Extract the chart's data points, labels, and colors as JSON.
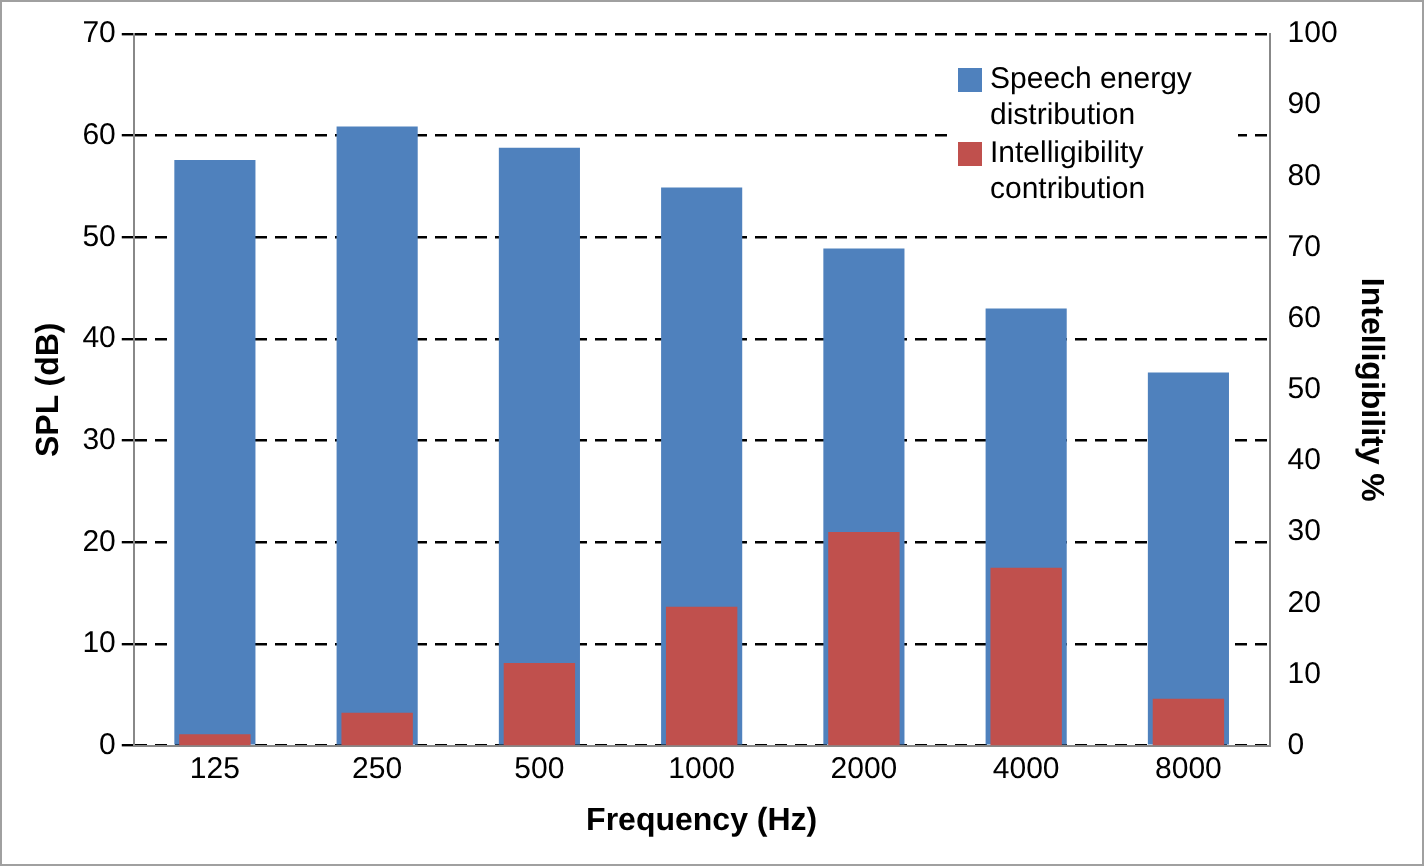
{
  "chart_data": {
    "type": "bar",
    "xlabel": "Frequency (Hz)",
    "ylabel": "SPL (dB)",
    "y2label": "Intelligibility %",
    "categories": [
      "125",
      "250",
      "500",
      "1000",
      "2000",
      "4000",
      "8000"
    ],
    "series": [
      {
        "name": "Speech energy distribution",
        "color": "#4f81bd",
        "values": [
          57.6,
          60.9,
          58.8,
          54.9,
          48.9,
          43,
          36.7
        ]
      },
      {
        "name": "Intelligibility contribution",
        "color": "#c0504d",
        "axis": "y2",
        "values": [
          1.6,
          4.6,
          11.6,
          19.5,
          30,
          25,
          6.6
        ]
      }
    ],
    "ylim": [
      0,
      70
    ],
    "yticks": [
      0,
      10,
      20,
      30,
      40,
      50,
      60,
      70
    ],
    "y2lim": [
      0,
      100
    ],
    "y2ticks": [
      0,
      10,
      20,
      30,
      40,
      50,
      60,
      70,
      80,
      90,
      100
    ],
    "grid": "y",
    "legend": "top right"
  }
}
